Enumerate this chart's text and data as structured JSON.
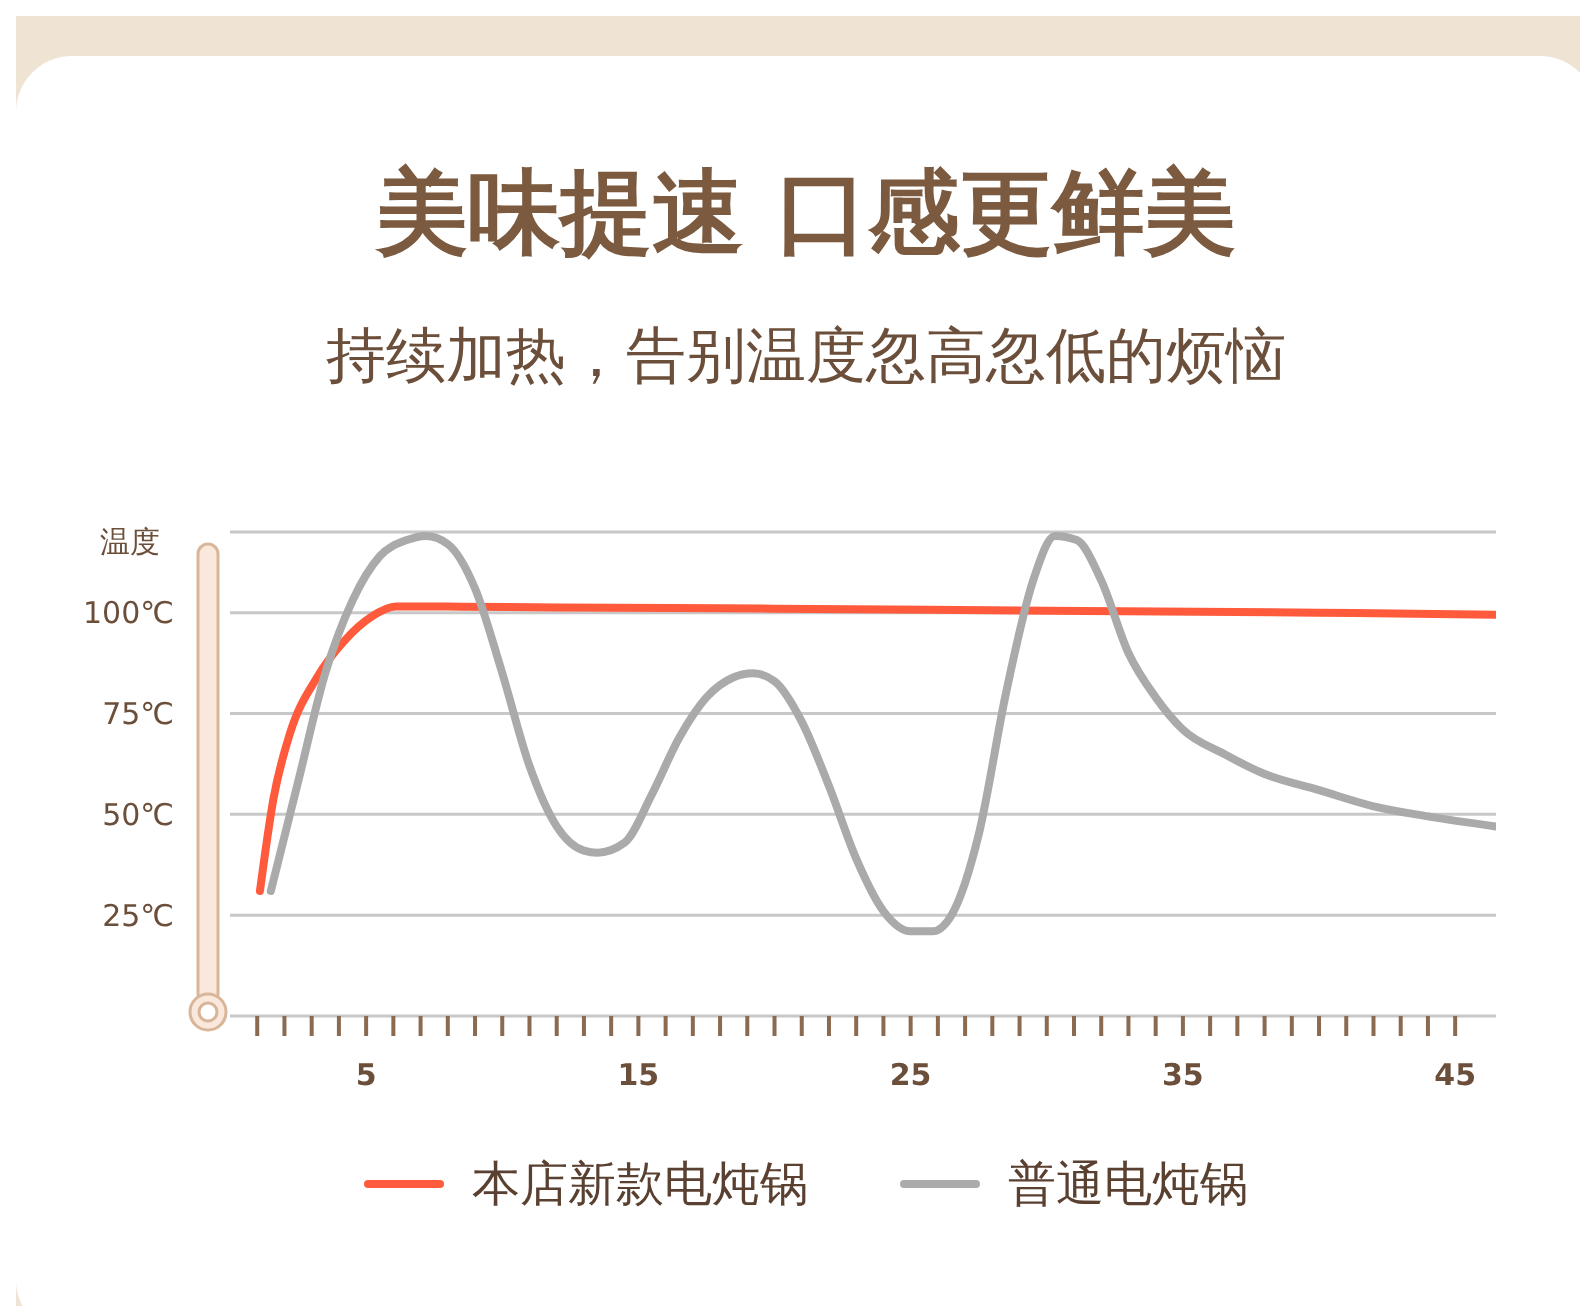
{
  "chart_data": {
    "type": "line",
    "title": "美味提速 口感更鲜美",
    "subtitle": "持续加热，告别温度忽高忽低的烦恼",
    "ylabel": "温度",
    "series": [
      {
        "name": "本店新款电炖锅",
        "color": "#ff5a3c",
        "x": [
          1.1,
          1.6,
          2.2,
          3.2,
          4.2,
          5.2,
          6.1,
          8,
          12,
          20,
          30,
          40,
          46.5
        ],
        "values": [
          31,
          54,
          70,
          84,
          93,
          99,
          101.5,
          101.5,
          101.3,
          101,
          100.5,
          100,
          99.5
        ]
      },
      {
        "name": "普通电炖锅",
        "color": "#aaaaaa",
        "x": [
          1.5,
          2.5,
          3.5,
          4.5,
          5.5,
          6.5,
          7.2,
          8,
          9,
          10,
          11,
          12,
          13,
          13.5,
          14.5,
          15.5,
          16.5,
          17.5,
          18.5,
          19.2,
          20,
          21,
          22,
          23,
          24,
          25,
          25.8,
          26.5,
          27.5,
          28.5,
          29.5,
          30.3,
          31.1,
          32,
          33,
          34,
          35,
          36.5,
          38,
          40,
          42,
          44,
          46.5
        ],
        "values": [
          31,
          58,
          85,
          103,
          114,
          118,
          119,
          117,
          106,
          85,
          62,
          47,
          41,
          40.5,
          43,
          55,
          69,
          79,
          84,
          85,
          83,
          73,
          57,
          39,
          26,
          21,
          21,
          25,
          45,
          80,
          108,
          119,
          118,
          108,
          90,
          79,
          71,
          65,
          60,
          56,
          52,
          49.5,
          47
        ]
      }
    ],
    "xlim": [
      0,
      46.5
    ],
    "xticks": [
      {
        "value": 1,
        "label": null
      },
      {
        "value": 2,
        "label": null
      },
      {
        "value": 3,
        "label": null
      },
      {
        "value": 4,
        "label": null
      },
      5,
      {
        "value": 6,
        "label": null
      },
      {
        "value": 7,
        "label": null
      },
      {
        "value": 8,
        "label": null
      },
      {
        "value": 9,
        "label": null
      },
      {
        "value": 10,
        "label": null
      },
      {
        "value": 11,
        "label": null
      },
      {
        "value": 12,
        "label": null
      },
      {
        "value": 13,
        "label": null
      },
      {
        "value": 14,
        "label": null
      },
      15,
      {
        "value": 16,
        "label": null
      },
      {
        "value": 17,
        "label": null
      },
      {
        "value": 18,
        "label": null
      },
      {
        "value": 19,
        "label": null
      },
      {
        "value": 20,
        "label": null
      },
      {
        "value": 21,
        "label": null
      },
      {
        "value": 22,
        "label": null
      },
      {
        "value": 23,
        "label": null
      },
      {
        "value": 24,
        "label": null
      },
      25,
      {
        "value": 26,
        "label": null
      },
      {
        "value": 27,
        "label": null
      },
      {
        "value": 28,
        "label": null
      },
      {
        "value": 29,
        "label": null
      },
      {
        "value": 30,
        "label": null
      },
      {
        "value": 31,
        "label": null
      },
      {
        "value": 32,
        "label": null
      },
      {
        "value": 33,
        "label": null
      },
      {
        "value": 34,
        "label": null
      },
      35,
      {
        "value": 36,
        "label": null
      },
      {
        "value": 37,
        "label": null
      },
      {
        "value": 38,
        "label": null
      },
      {
        "value": 39,
        "label": null
      },
      {
        "value": 40,
        "label": null
      },
      {
        "value": 41,
        "label": null
      },
      {
        "value": 42,
        "label": null
      },
      {
        "value": 43,
        "label": null
      },
      {
        "value": 44,
        "label": null
      },
      45
    ],
    "ylim": [
      0,
      120
    ],
    "yticks": [
      {
        "value": 25,
        "label": "25℃"
      },
      {
        "value": 50,
        "label": "50℃"
      },
      {
        "value": 75,
        "label": "75℃"
      },
      {
        "value": 100,
        "label": "100℃"
      }
    ],
    "grid": "y",
    "legend": "bottom",
    "marker": "none",
    "line_style": "solid"
  }
}
